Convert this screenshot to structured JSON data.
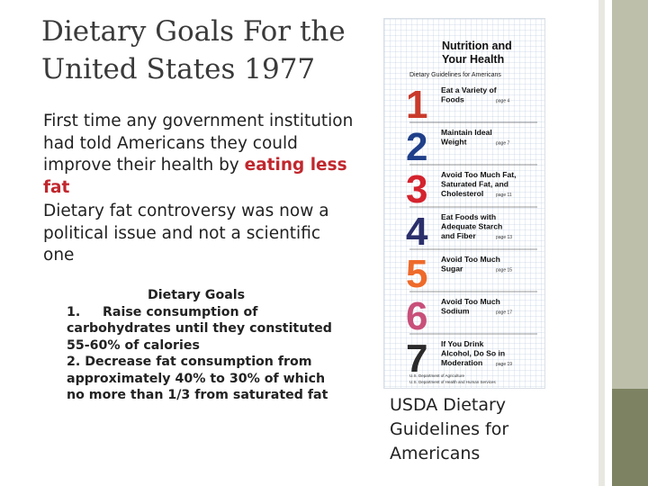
{
  "slide": {
    "title": "Dietary Goals For the United States 1977",
    "paragraphs": [
      {
        "before": "First time any government institution had told Americans they could improve their health by ",
        "highlight": "eating less fat"
      },
      {
        "text": "Dietary fat controversy was now a political issue and not a scientific one"
      }
    ],
    "goals": {
      "heading": "Dietary Goals",
      "item1_num": "1.",
      "item1_text": "Raise consumption of carbohydrates until they constituted 55-60% of calories",
      "item2": "2. Decrease fat consumption from approximately 40% to 30% of which no more than 1/3 from saturated fat"
    },
    "caption": "USDA Dietary Guidelines for Americans",
    "highlight_color": "#c0272d"
  },
  "poster": {
    "title_line1": "Nutrition and",
    "title_line2": "Your Health",
    "subtitle": "Dietary Guidelines for Americans",
    "guidelines": [
      {
        "num": "1",
        "color": "#c93a2b",
        "lines": [
          "Eat a Variety of",
          "Foods"
        ],
        "page": "page 4"
      },
      {
        "num": "2",
        "color": "#1f3f8a",
        "lines": [
          "Maintain Ideal",
          "Weight"
        ],
        "page": "page 7"
      },
      {
        "num": "3",
        "color": "#d4232e",
        "lines": [
          "Avoid Too Much Fat,",
          "Saturated Fat, and",
          "Cholesterol"
        ],
        "page": "page 11"
      },
      {
        "num": "4",
        "color": "#2b2f6b",
        "lines": [
          "Eat Foods with",
          "Adequate Starch",
          "and Fiber"
        ],
        "page": "page 13"
      },
      {
        "num": "5",
        "color": "#ee6a2b",
        "lines": [
          "Avoid Too Much",
          "Sugar"
        ],
        "page": "page 15"
      },
      {
        "num": "6",
        "color": "#c8507a",
        "lines": [
          "Avoid Too Much",
          "Sodium"
        ],
        "page": "page 17"
      },
      {
        "num": "7",
        "color": "#2a2a2a",
        "lines": [
          "If You Drink",
          "Alcohol, Do So in",
          "Moderation"
        ],
        "page": "page 19"
      }
    ],
    "footer_line1": "U.S. Department of Agriculture",
    "footer_line2": "U.S. Department of Health and Human Services"
  }
}
